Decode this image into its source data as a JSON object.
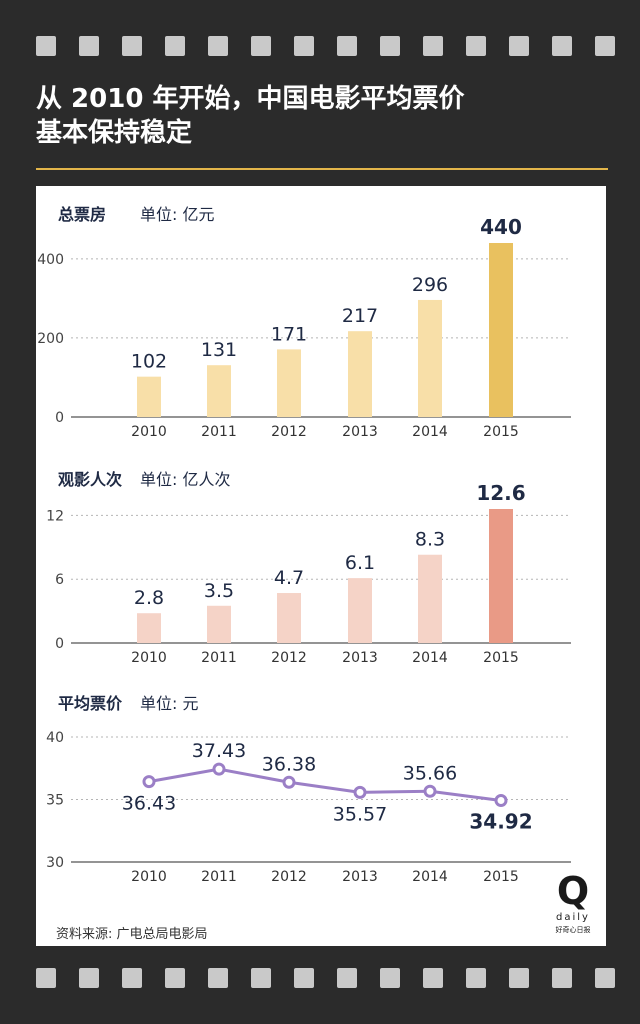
{
  "title_lines": [
    "从 2010 年开始，中国电影平均票价",
    "基本保持稳定"
  ],
  "source": "资料来源: 广电总局电影局",
  "logo": {
    "letter": "Q",
    "word": "daily",
    "sub": "好奇心日报"
  },
  "colors": {
    "background": "#2b2b2b",
    "accent_rule": "#e2b54a",
    "box_office_bar": "#f8dfa8",
    "box_office_highlight": "#e9c15f",
    "admissions_bar": "#f5d3c7",
    "admissions_highlight": "#e99a86",
    "price_line": "#9b7fc6",
    "text_dark": "#1f2a44"
  },
  "chart_data": [
    {
      "type": "bar",
      "title": "总票房",
      "unit": "单位: 亿元",
      "categories": [
        "2010",
        "2011",
        "2012",
        "2013",
        "2014",
        "2015"
      ],
      "values": [
        102,
        131,
        171,
        217,
        296,
        440
      ],
      "value_labels": [
        "102",
        "131",
        "171",
        "217",
        "296",
        "440"
      ],
      "yticks": [
        0,
        200,
        400
      ],
      "ylim": [
        0,
        440
      ],
      "highlight_index": 5,
      "grid": true
    },
    {
      "type": "bar",
      "title": "观影人次",
      "unit": "单位: 亿人次",
      "categories": [
        "2010",
        "2011",
        "2012",
        "2013",
        "2014",
        "2015"
      ],
      "values": [
        2.8,
        3.5,
        4.7,
        6.1,
        8.3,
        12.6
      ],
      "value_labels": [
        "2.8",
        "3.5",
        "4.7",
        "6.1",
        "8.3",
        "12.6"
      ],
      "yticks": [
        0,
        6,
        12
      ],
      "ylim": [
        0,
        12.6
      ],
      "highlight_index": 5,
      "grid": true
    },
    {
      "type": "line",
      "title": "平均票价",
      "unit": "单位: 元",
      "categories": [
        "2010",
        "2011",
        "2012",
        "2013",
        "2014",
        "2015"
      ],
      "values": [
        36.43,
        37.43,
        36.38,
        35.57,
        35.66,
        34.92
      ],
      "value_labels": [
        "36.43",
        "37.43",
        "36.38",
        "35.57",
        "35.66",
        "34.92"
      ],
      "yticks": [
        30,
        35,
        40
      ],
      "ylim": [
        30,
        40
      ],
      "highlight_index": 5,
      "grid": true
    }
  ]
}
